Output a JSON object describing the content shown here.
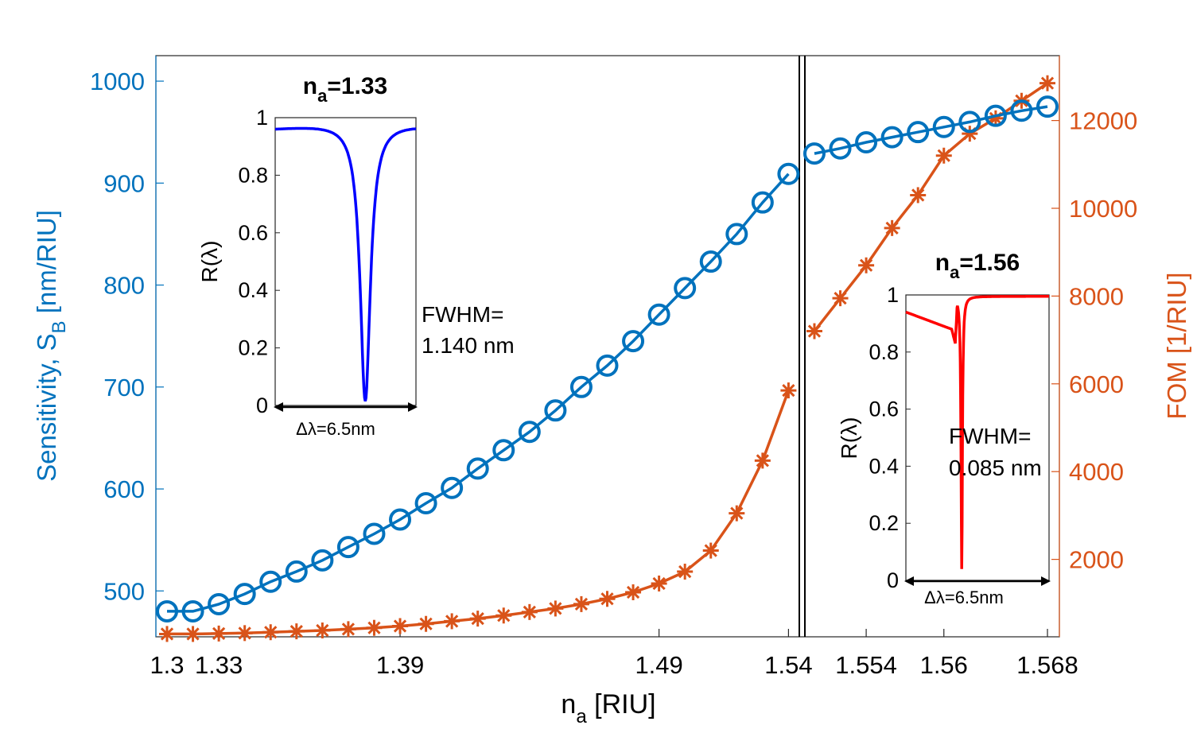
{
  "chart_data": [
    {
      "type": "line",
      "xlabel": "n",
      "xlabel_sub": "a",
      "xlabel_unit": " [RIU]",
      "ylabel_left": "Sensitivity, S",
      "ylabel_left_sub": "B",
      "ylabel_left_unit": "  [nm/RIU]",
      "ylabel_right": "FOM [1/RIU]",
      "x_ticks": [
        "1.3",
        "1.33",
        "1.39",
        "1.49",
        "1.54",
        "1.554",
        "1.56",
        "1.568"
      ],
      "y_left_ticks": [
        "500",
        "600",
        "700",
        "800",
        "900",
        "1000"
      ],
      "y_right_ticks": [
        "2000",
        "4000",
        "6000",
        "8000",
        "10000",
        "12000"
      ],
      "y_left_lim": [
        455,
        1025
      ],
      "y_right_lim": [
        0,
        13000
      ],
      "x_axis_note": "nonlinear, piecewise scale; vertical double line near 1.54 separates regions",
      "series": [
        {
          "name": "Sensitivity S_B",
          "axis": "left",
          "marker": "circle",
          "color": "#0072BD",
          "values": [
            480,
            480,
            487,
            497,
            509,
            519,
            530,
            543,
            556,
            570,
            586,
            601,
            620,
            638,
            656,
            677,
            700,
            721,
            745,
            771,
            797,
            823,
            850,
            881,
            909,
            929,
            934,
            940,
            945,
            950,
            955,
            960,
            966,
            971,
            975
          ]
        },
        {
          "name": "FOM",
          "axis": "right",
          "marker": "asterisk",
          "color": "#D95319",
          "values": [
            300,
            300,
            310,
            320,
            340,
            360,
            380,
            410,
            440,
            480,
            530,
            590,
            650,
            720,
            800,
            880,
            980,
            1100,
            1250,
            1450,
            1720,
            2200,
            3050,
            4250,
            5850,
            7200,
            7950,
            8700,
            9550,
            10300,
            11200,
            11700,
            12050,
            12450,
            12850
          ]
        }
      ]
    },
    {
      "type": "line",
      "title": "n",
      "title_sub": "a",
      "title_value": "=1.33",
      "ylabel": "R(λ)",
      "y_ticks": [
        "0",
        "0.2",
        "0.4",
        "0.6",
        "0.8",
        "1"
      ],
      "ylim": [
        0,
        1
      ],
      "x_span_label": "Δλ=6.5nm",
      "annotation_line1": "FWHM=",
      "annotation_line2": "1.140 nm",
      "color": "#0000ff",
      "dip_center": 0.64,
      "dip_halfwidth": 0.09,
      "baseline": 0.99
    },
    {
      "type": "line",
      "title": "n",
      "title_sub": "a",
      "title_value": "=1.56",
      "ylabel": "R(λ)",
      "y_ticks": [
        "0",
        "0.2",
        "0.4",
        "0.6",
        "0.8",
        "1"
      ],
      "ylim": [
        0,
        1
      ],
      "x_span_label": "Δλ=6.5nm",
      "annotation_line1": "FWHM=",
      "annotation_line2": "0.085 nm",
      "color": "#ff0000",
      "dip_center": 0.39,
      "dip_halfwidth": 0.008,
      "baseline": 0.995
    }
  ]
}
